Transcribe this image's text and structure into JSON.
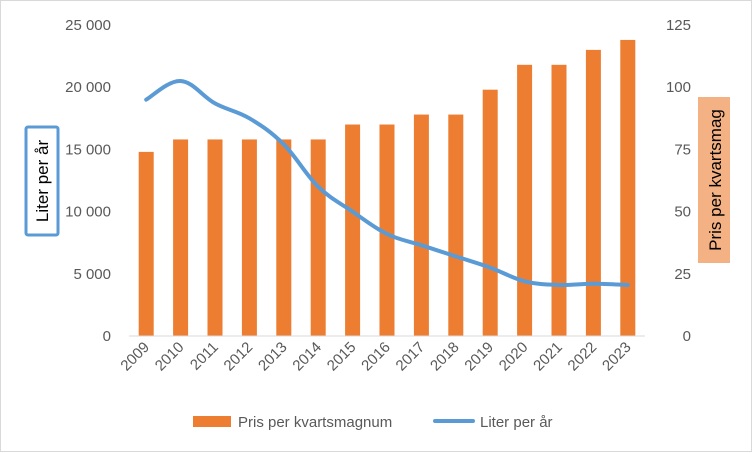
{
  "chart_data": {
    "type": "bar+line",
    "categories": [
      "2009",
      "2010",
      "2011",
      "2012",
      "2013",
      "2014",
      "2015",
      "2016",
      "2017",
      "2018",
      "2019",
      "2020",
      "2021",
      "2022",
      "2023"
    ],
    "series": [
      {
        "name": "Pris per kvartsmagnum",
        "type": "bar",
        "axis": "right",
        "color": "#ED7D31",
        "values": [
          74,
          79,
          79,
          79,
          79,
          79,
          85,
          85,
          89,
          89,
          99,
          109,
          109,
          115,
          119
        ]
      },
      {
        "name": "Liter per år",
        "type": "line",
        "axis": "left",
        "color": "#5B9BD5",
        "values": [
          19000,
          20500,
          18700,
          17500,
          15400,
          12000,
          10000,
          8200,
          7300,
          6400,
          5500,
          4400,
          4100,
          4200,
          4100
        ]
      }
    ],
    "y_left": {
      "label": "Liter per år",
      "ylim": [
        0,
        25000
      ],
      "ticks": [
        0,
        5000,
        10000,
        15000,
        20000,
        25000
      ],
      "tick_labels": [
        "0",
        "5 000",
        "10 000",
        "15 000",
        "20 000",
        "25 000"
      ]
    },
    "y_right": {
      "label": "Pris per kvartsmag",
      "ylim": [
        0,
        125
      ],
      "ticks": [
        0,
        25,
        50,
        75,
        100,
        125
      ],
      "tick_labels": [
        "0",
        "25",
        "50",
        "75",
        "100",
        "125"
      ]
    },
    "grid": false,
    "legend_position": "bottom",
    "legend": [
      "Pris per kvartsmagnum",
      "Liter per år"
    ],
    "colors": {
      "left_title_border": "#5B9BD5",
      "right_title_fill": "#F4B183",
      "axis_text": "#595959"
    }
  }
}
